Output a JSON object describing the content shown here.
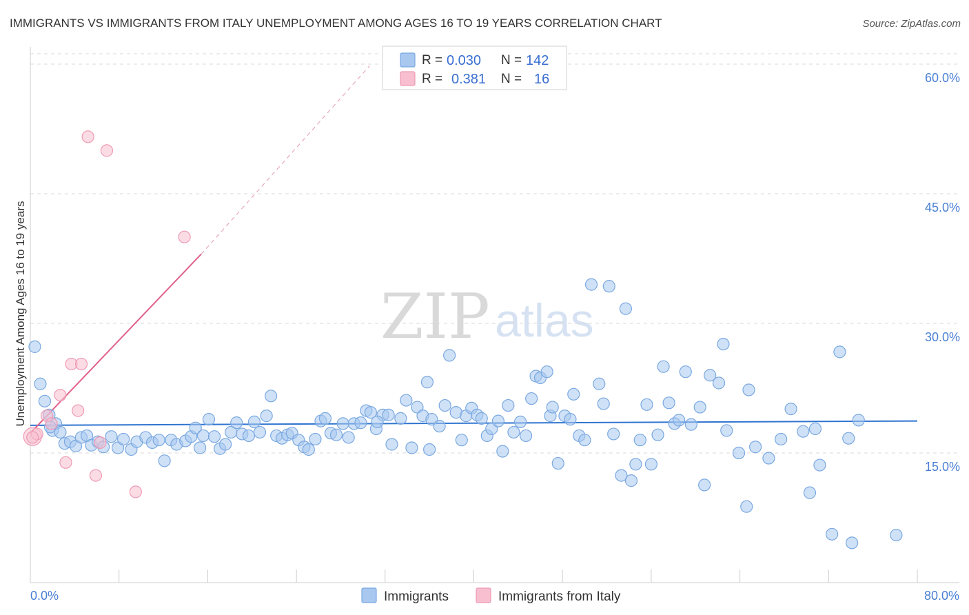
{
  "header": {
    "title": "IMMIGRANTS VS IMMIGRANTS FROM ITALY UNEMPLOYMENT AMONG AGES 16 TO 19 YEARS CORRELATION CHART",
    "source": "Source: ZipAtlas.com"
  },
  "watermark": {
    "zip": "ZIP",
    "atlas": "atlas"
  },
  "legend_box": {
    "rows": [
      {
        "r_label": "R =",
        "r_value": "0.030",
        "n_label": "N =",
        "n_value": "142"
      },
      {
        "r_label": "R =",
        "r_value": "0.381",
        "n_label": "N =",
        "n_value": "16"
      }
    ]
  },
  "bottom_legend": {
    "items": [
      "Immigrants",
      "Immigrants from Italy"
    ]
  },
  "colors": {
    "blue_fill": "#a8c8f0",
    "blue_stroke": "#7aa8e0",
    "blue_line": "#2f74d0",
    "pink_fill": "#f7bfd0",
    "pink_stroke": "#ee9ab4",
    "pink_line": "#e0608a",
    "grid": "#d9d9d9",
    "tick_text": "#4a7fd4"
  },
  "chart_data": {
    "type": "scatter",
    "title": "IMMIGRANTS VS IMMIGRANTS FROM ITALY UNEMPLOYMENT AMONG AGES 16 TO 19 YEARS CORRELATION CHART",
    "xlabel": "",
    "ylabel": "Unemployment Among Ages 16 to 19 years",
    "xlim": [
      0,
      80
    ],
    "ylim": [
      0,
      60
    ],
    "x_tick_labels": [
      "0.0%",
      "80.0%"
    ],
    "y_ticks": [
      15,
      30,
      45,
      60
    ],
    "y_tick_labels": [
      "15.0%",
      "30.0%",
      "45.0%",
      "60.0%"
    ],
    "grid": true,
    "legend_position": "top-center",
    "series": [
      {
        "name": "Immigrants",
        "R": 0.03,
        "N": 142,
        "trend": {
          "x0": 0,
          "y0": 18.2,
          "x1": 80,
          "y1": 18.7
        },
        "points": [
          [
            0.4,
            27.3
          ],
          [
            0.9,
            23.0
          ],
          [
            1.3,
            21.0
          ],
          [
            1.7,
            19.4
          ],
          [
            2.3,
            18.4
          ],
          [
            2.0,
            17.6
          ],
          [
            1.8,
            18.0
          ],
          [
            2.7,
            17.4
          ],
          [
            3.1,
            16.1
          ],
          [
            3.6,
            16.3
          ],
          [
            4.1,
            15.8
          ],
          [
            4.6,
            16.8
          ],
          [
            5.1,
            17.0
          ],
          [
            5.5,
            15.9
          ],
          [
            6.1,
            16.3
          ],
          [
            6.6,
            15.7
          ],
          [
            7.3,
            16.9
          ],
          [
            7.9,
            15.6
          ],
          [
            8.4,
            16.6
          ],
          [
            9.1,
            15.4
          ],
          [
            9.6,
            16.3
          ],
          [
            10.4,
            16.8
          ],
          [
            11.0,
            16.2
          ],
          [
            11.6,
            16.5
          ],
          [
            12.1,
            14.1
          ],
          [
            12.7,
            16.5
          ],
          [
            13.2,
            16.0
          ],
          [
            14.0,
            16.4
          ],
          [
            14.5,
            16.9
          ],
          [
            14.9,
            17.9
          ],
          [
            15.3,
            15.6
          ],
          [
            15.6,
            17.0
          ],
          [
            16.1,
            18.9
          ],
          [
            16.6,
            16.9
          ],
          [
            17.1,
            15.5
          ],
          [
            17.6,
            16.0
          ],
          [
            18.1,
            17.4
          ],
          [
            18.6,
            18.5
          ],
          [
            19.1,
            17.2
          ],
          [
            19.7,
            17.0
          ],
          [
            20.2,
            18.6
          ],
          [
            20.7,
            17.4
          ],
          [
            21.3,
            19.3
          ],
          [
            21.7,
            21.6
          ],
          [
            22.2,
            17.0
          ],
          [
            22.7,
            16.7
          ],
          [
            23.2,
            17.1
          ],
          [
            23.6,
            17.3
          ],
          [
            24.2,
            16.5
          ],
          [
            24.7,
            15.7
          ],
          [
            25.1,
            15.4
          ],
          [
            25.7,
            16.6
          ],
          [
            26.2,
            18.7
          ],
          [
            26.6,
            19.0
          ],
          [
            27.1,
            17.3
          ],
          [
            27.6,
            17.1
          ],
          [
            28.2,
            18.4
          ],
          [
            28.7,
            16.8
          ],
          [
            29.2,
            18.4
          ],
          [
            29.8,
            18.5
          ],
          [
            30.3,
            19.9
          ],
          [
            30.7,
            19.7
          ],
          [
            31.2,
            17.8
          ],
          [
            31.8,
            19.4
          ],
          [
            32.3,
            19.4
          ],
          [
            31.3,
            18.6
          ],
          [
            32.6,
            16.0
          ],
          [
            33.4,
            19.0
          ],
          [
            33.9,
            21.1
          ],
          [
            34.4,
            15.6
          ],
          [
            34.9,
            20.3
          ],
          [
            35.4,
            19.3
          ],
          [
            35.8,
            23.2
          ],
          [
            36.2,
            18.9
          ],
          [
            36.9,
            18.1
          ],
          [
            37.4,
            20.5
          ],
          [
            37.8,
            26.3
          ],
          [
            38.4,
            19.7
          ],
          [
            38.9,
            16.5
          ],
          [
            39.3,
            19.3
          ],
          [
            39.8,
            20.2
          ],
          [
            40.3,
            19.4
          ],
          [
            40.7,
            19.0
          ],
          [
            41.2,
            17.0
          ],
          [
            41.6,
            17.8
          ],
          [
            42.2,
            18.7
          ],
          [
            42.6,
            15.2
          ],
          [
            43.1,
            20.5
          ],
          [
            43.6,
            17.4
          ],
          [
            44.2,
            18.6
          ],
          [
            44.7,
            17.0
          ],
          [
            45.2,
            21.3
          ],
          [
            45.6,
            23.9
          ],
          [
            46.0,
            23.7
          ],
          [
            46.6,
            24.4
          ],
          [
            46.9,
            19.3
          ],
          [
            47.1,
            20.3
          ],
          [
            47.6,
            13.8
          ],
          [
            48.2,
            19.3
          ],
          [
            48.7,
            18.9
          ],
          [
            49.0,
            21.8
          ],
          [
            49.5,
            17.0
          ],
          [
            50.0,
            16.5
          ],
          [
            50.6,
            34.5
          ],
          [
            51.3,
            23.0
          ],
          [
            51.7,
            20.7
          ],
          [
            52.2,
            34.3
          ],
          [
            52.6,
            17.2
          ],
          [
            53.3,
            12.4
          ],
          [
            53.7,
            31.7
          ],
          [
            54.2,
            11.8
          ],
          [
            54.6,
            13.7
          ],
          [
            55.0,
            16.5
          ],
          [
            55.6,
            20.6
          ],
          [
            56.0,
            13.7
          ],
          [
            56.6,
            17.1
          ],
          [
            57.1,
            25.0
          ],
          [
            57.6,
            20.8
          ],
          [
            58.1,
            18.4
          ],
          [
            58.5,
            18.8
          ],
          [
            59.1,
            24.4
          ],
          [
            59.6,
            18.3
          ],
          [
            60.4,
            20.3
          ],
          [
            60.8,
            11.3
          ],
          [
            61.3,
            24.0
          ],
          [
            62.1,
            23.1
          ],
          [
            62.5,
            27.6
          ],
          [
            62.8,
            17.6
          ],
          [
            63.9,
            15.0
          ],
          [
            64.6,
            8.8
          ],
          [
            64.8,
            22.3
          ],
          [
            65.4,
            15.7
          ],
          [
            66.6,
            14.4
          ],
          [
            67.7,
            16.6
          ],
          [
            68.6,
            20.1
          ],
          [
            69.7,
            17.5
          ],
          [
            70.3,
            10.4
          ],
          [
            70.8,
            17.8
          ],
          [
            71.2,
            13.6
          ],
          [
            73.0,
            26.7
          ],
          [
            72.3,
            5.6
          ],
          [
            73.8,
            16.7
          ],
          [
            74.1,
            4.6
          ],
          [
            74.7,
            18.8
          ],
          [
            78.1,
            5.5
          ],
          [
            36.0,
            15.4
          ]
        ]
      },
      {
        "name": "Immigrants from Italy",
        "R": 0.381,
        "N": 16,
        "trend": {
          "x0": 0,
          "y0": 17.3,
          "x1": 15.4,
          "y1": 38.0
        },
        "trend_dashed_extension": {
          "x0": 15.4,
          "y0": 38.0,
          "x1": 30.6,
          "y1": 59.8
        },
        "points": [
          [
            0.2,
            16.9
          ],
          [
            0.6,
            17.2
          ],
          [
            1.5,
            19.3
          ],
          [
            1.9,
            18.4
          ],
          [
            2.7,
            21.7
          ],
          [
            3.2,
            13.9
          ],
          [
            3.7,
            25.3
          ],
          [
            4.3,
            19.9
          ],
          [
            4.6,
            25.3
          ],
          [
            5.2,
            51.6
          ],
          [
            5.9,
            12.4
          ],
          [
            6.3,
            16.2
          ],
          [
            6.9,
            50.0
          ],
          [
            9.5,
            10.5
          ],
          [
            13.9,
            40.0
          ],
          [
            0.2,
            16.8
          ]
        ]
      }
    ]
  }
}
